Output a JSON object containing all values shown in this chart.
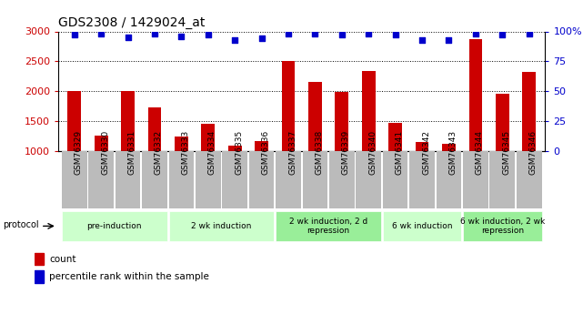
{
  "title": "GDS2308 / 1429024_at",
  "samples": [
    "GSM76329",
    "GSM76330",
    "GSM76331",
    "GSM76332",
    "GSM76333",
    "GSM76334",
    "GSM76335",
    "GSM76336",
    "GSM76337",
    "GSM76338",
    "GSM76339",
    "GSM76340",
    "GSM76341",
    "GSM76342",
    "GSM76343",
    "GSM76344",
    "GSM76345",
    "GSM76346"
  ],
  "counts": [
    2000,
    1250,
    2000,
    1720,
    1240,
    1450,
    1090,
    1160,
    2510,
    2150,
    1980,
    2340,
    1460,
    1150,
    1110,
    2870,
    1960,
    2320
  ],
  "percentile_ranks": [
    97,
    98,
    95,
    98,
    96,
    97,
    93,
    94,
    98,
    98,
    97,
    98,
    97,
    93,
    93,
    98,
    97,
    98
  ],
  "ylim_left": [
    1000,
    3000
  ],
  "ylim_right": [
    0,
    100
  ],
  "yticks_left": [
    1000,
    1500,
    2000,
    2500,
    3000
  ],
  "yticks_right": [
    0,
    25,
    50,
    75,
    100
  ],
  "bar_color": "#cc0000",
  "dot_color": "#0000cc",
  "grid_color": "#000000",
  "left_tick_color": "#cc0000",
  "right_tick_color": "#0000cc",
  "protocols": [
    {
      "label": "pre-induction",
      "start": 0,
      "end": 3,
      "color": "#ccffcc"
    },
    {
      "label": "2 wk induction",
      "start": 4,
      "end": 7,
      "color": "#ccffcc"
    },
    {
      "label": "2 wk induction, 2 d\nrepression",
      "start": 8,
      "end": 11,
      "color": "#99ee99"
    },
    {
      "label": "6 wk induction",
      "start": 12,
      "end": 14,
      "color": "#ccffcc"
    },
    {
      "label": "6 wk induction, 2 wk\nrepression",
      "start": 15,
      "end": 17,
      "color": "#99ee99"
    }
  ],
  "protocol_label": "protocol",
  "legend_count_label": "count",
  "legend_pct_label": "percentile rank within the sample",
  "bar_width": 0.5,
  "sample_label_color": "#bbbbbb"
}
